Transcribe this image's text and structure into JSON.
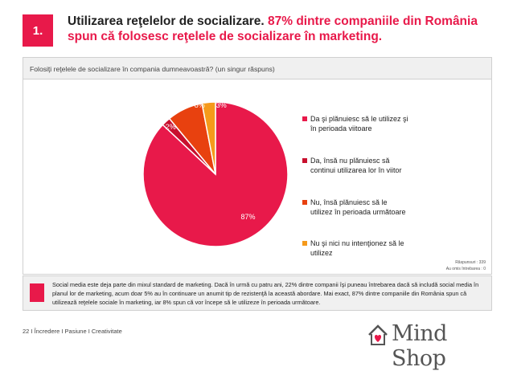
{
  "header": {
    "number": "1.",
    "title_plain": "Utilizarea reţelelor de socializare.",
    "title_highlight_1": "87% dintre companiile din România",
    "title_line2": "spun că folosesc reţelele de socializare în marketing."
  },
  "question": "Folosiţi reţelele de socializare în compania dumneavoastră? (un singur răspuns)",
  "chart_data": {
    "type": "pie",
    "slices": [
      {
        "label": "Da şi plănuiesc să le utilizez şi în perioada viitoare",
        "value": 87,
        "value_label": "87%",
        "color": "#e8194a"
      },
      {
        "label": "Da, însă nu plănuiesc să continui utilizarea lor în viitor",
        "value": 2,
        "value_label": "2%",
        "color": "#c8102e"
      },
      {
        "label": "Nu, însă plănuiesc să le utilizez în perioada următoare",
        "value": 8,
        "value_label": "8%",
        "color": "#e8410f"
      },
      {
        "label": "Nu şi nici nu intenţionez să le utilizez",
        "value": 3,
        "value_label": "3%",
        "color": "#f59a1b"
      }
    ],
    "legend_position": "right"
  },
  "legend": [
    {
      "line1": "Da şi plănuiesc să le utilizez şi",
      "line2": "în perioada viitoare",
      "color": "#e8194a"
    },
    {
      "line1": "Da, însă nu plănuiesc să",
      "line2": "continui utilizarea lor în viitor",
      "color": "#c8102e"
    },
    {
      "line1": "Nu, însă plănuiesc să le",
      "line2": "utilizez în perioada următoare",
      "color": "#e8410f"
    },
    {
      "line1": "Nu şi nici nu intenţionez să le",
      "line2": "utilizez",
      "color": "#f59a1b"
    }
  ],
  "responses": {
    "line1": "Răspunsuri : 339",
    "line2": "Au omis întrebarea : 0"
  },
  "summary": "Social media este deja parte din mixul standard de marketing. Dacă în urmă cu patru ani, 22% dintre companii îşi puneau întrebarea dacă să includă social media în planul lor de marketing, acum doar 5% au în continuare un anumit tip de rezistenţă la această abordare. Mai exact, 87% dintre companiile din România spun că utilizează reţelele sociale în marketing, iar 8% spun că vor începe să le utilizeze în perioada următoare.",
  "footer": "22 I Încredere I Pasiune I Creativitate",
  "logo": {
    "text": "Mind Shop",
    "icon": "house-heart-icon",
    "color": "#e8194a"
  }
}
